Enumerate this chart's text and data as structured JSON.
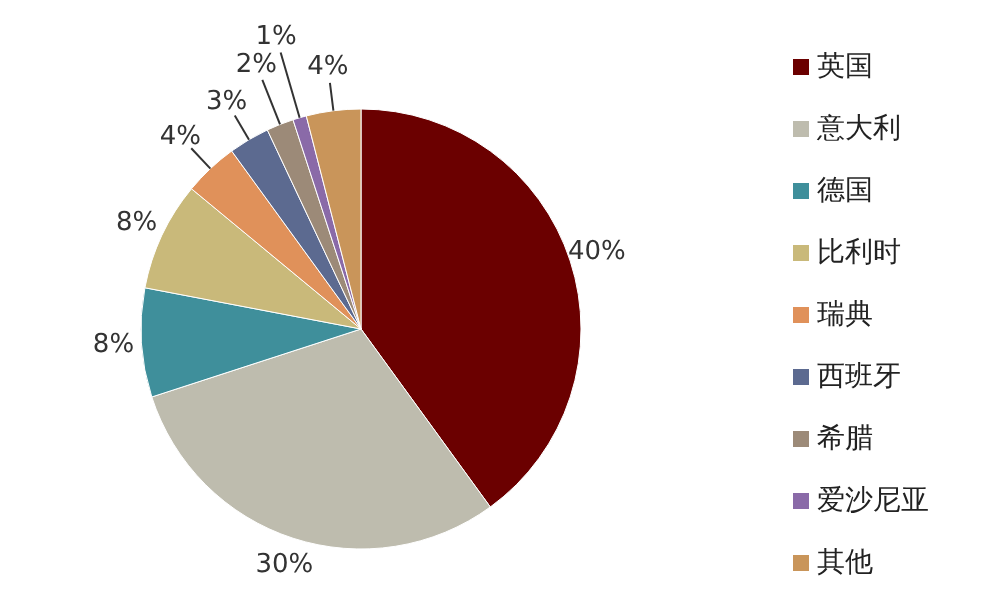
{
  "chart_data": {
    "type": "pie",
    "categories": [
      "英国",
      "意大利",
      "德国",
      "比利时",
      "瑞典",
      "西班牙",
      "希腊",
      "爱沙尼亚",
      "其他"
    ],
    "values": [
      40,
      30,
      8,
      8,
      4,
      3,
      2,
      1,
      4
    ],
    "colors": [
      "#6b0000",
      "#bebcae",
      "#3f8f9b",
      "#c9b97a",
      "#e0915a",
      "#5c6a90",
      "#9c8a78",
      "#8a6aa8",
      "#c9955a"
    ],
    "value_labels": [
      "40%",
      "30%",
      "8%",
      "8%",
      "4%",
      "3%",
      "2%",
      "1%",
      "4%"
    ],
    "legend": "right"
  }
}
